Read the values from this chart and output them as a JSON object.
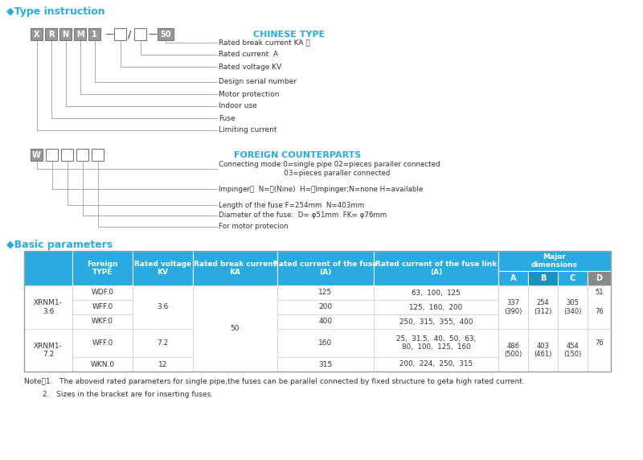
{
  "blue": "#29ABE2",
  "dark_blue": "#1A8FC0",
  "subheader_blue": "#5BBAD5",
  "gray_box": "#999999",
  "white": "#FFFFFF",
  "text_dark": "#333333",
  "line_gray": "#AAAAAA",
  "border_gray": "#CCCCCC",
  "title1": "◆Type instruction",
  "title2": "◆Basic parameters",
  "ch_label": "CHINESE TYPE",
  "fo_label": "FOREIGN COUNTERPARTS",
  "ch_boxes": [
    "X",
    "R",
    "N",
    "M",
    "1"
  ],
  "ch_labels": [
    "Rated break current KA ；",
    "Rated current  A",
    "Rated voltage KV",
    "Design serial number",
    "Motor protection",
    "Indoor use",
    "Fuse",
    "Limiting current"
  ],
  "fo_labels": [
    "Connecting mode:0=single pipe 02=pieces paraller connected\n       03=pieces paraller connected",
    "Impinger；  N=无(Nine)  H=有Impinger;N=none H=available",
    "Length of the fuse:F=254mm  N=403mm",
    "Diameter of the fuse:  D= φ51mm  FK= φ76mm",
    "For motor protecion"
  ],
  "note1": "Note：1.   The aboveid rated parameters for single pipe,the fuses can be parallel connected by fixed structure to geta high rated current.",
  "note2": "        2.   Sizes in the bracket are for inserting fuses.",
  "col_headers": [
    "Foreign\nTYPE",
    "Rated voltage\nKV",
    "Rated break current\nKA",
    "Rated current of the fuse\n(A)",
    "Rated current of the fuse link\n(A)"
  ],
  "abcd": [
    "A",
    "B",
    "C",
    "D"
  ],
  "major_dim": "Major\ndimensions",
  "rows": [
    {
      "model": "XRNM1-\n3.6",
      "foreign": "WDF.0",
      "voltage": "3.6",
      "break_ka": "50",
      "fuse_a": "125",
      "link_a": "63,  100,  125",
      "A": "337\n(390)",
      "B": "254\n(312)",
      "C": "305\n(340)",
      "D1": "51",
      "D2": ""
    },
    {
      "model": "",
      "foreign": "WFF.0",
      "voltage": "",
      "break_ka": "",
      "fuse_a": "200",
      "link_a": "125,  160,  200",
      "A": "",
      "B": "",
      "C": "",
      "D1": "",
      "D2": "76"
    },
    {
      "model": "",
      "foreign": "WKF.0",
      "voltage": "",
      "break_ka": "",
      "fuse_a": "400",
      "link_a": "250,  315,  355,  400",
      "A": "",
      "B": "",
      "C": "",
      "D1": "",
      "D2": ""
    },
    {
      "model": "XRNM1-\n7.2",
      "foreign": "WFF.0",
      "voltage": "7.2",
      "break_ka": "",
      "fuse_a": "160",
      "link_a": "25,  31.5,  40,  50,  63,\n80,  100,  125,  160",
      "A": "486\n(500)",
      "B": "403\n(461)",
      "C": "454\n(150)",
      "D1": "",
      "D2": "76"
    },
    {
      "model": "",
      "foreign": "WKN.0",
      "voltage": "12",
      "break_ka": "",
      "fuse_a": "315",
      "link_a": "200,  224,  250,  315",
      "A": "",
      "B": "",
      "C": "",
      "D1": "",
      "D2": ""
    }
  ]
}
